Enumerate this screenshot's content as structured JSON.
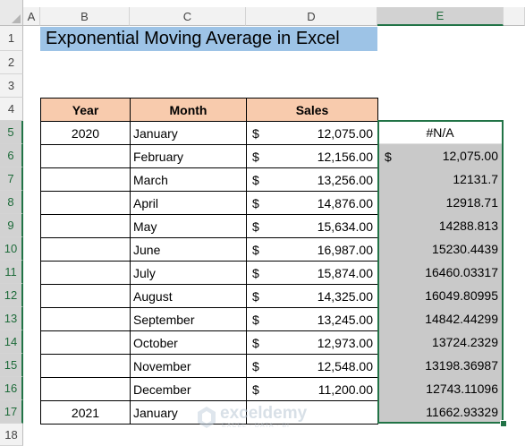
{
  "column_headers": [
    "A",
    "B",
    "C",
    "D",
    "E"
  ],
  "row_headers": [
    "1",
    "2",
    "3",
    "4",
    "5",
    "6",
    "7",
    "8",
    "9",
    "10",
    "11",
    "12",
    "13",
    "14",
    "15",
    "16",
    "17",
    "18"
  ],
  "title": "Exponential Moving Average in Excel",
  "table_headers": {
    "year": "Year",
    "month": "Month",
    "sales": "Sales"
  },
  "currency_symbol": "$",
  "rows": [
    {
      "year": "2020",
      "month": "January",
      "sales": "12,075.00",
      "ema": "#N/A"
    },
    {
      "year": "",
      "month": "February",
      "sales": "12,156.00",
      "ema": "12,075.00"
    },
    {
      "year": "",
      "month": "March",
      "sales": "13,256.00",
      "ema": "12131.7"
    },
    {
      "year": "",
      "month": "April",
      "sales": "14,876.00",
      "ema": "12918.71"
    },
    {
      "year": "",
      "month": "May",
      "sales": "15,634.00",
      "ema": "14288.813"
    },
    {
      "year": "",
      "month": "June",
      "sales": "16,987.00",
      "ema": "15230.4439"
    },
    {
      "year": "",
      "month": "July",
      "sales": "15,874.00",
      "ema": "16460.03317"
    },
    {
      "year": "",
      "month": "August",
      "sales": "14,325.00",
      "ema": "16049.80995"
    },
    {
      "year": "",
      "month": "September",
      "sales": "13,245.00",
      "ema": "14842.44299"
    },
    {
      "year": "",
      "month": "October",
      "sales": "12,973.00",
      "ema": "13724.2329"
    },
    {
      "year": "",
      "month": "November",
      "sales": "12,548.00",
      "ema": "13198.36987"
    },
    {
      "year": "",
      "month": "December",
      "sales": "11,200.00",
      "ema": "12743.11096"
    },
    {
      "year": "2021",
      "month": "January",
      "sales": "",
      "ema": "11662.93329"
    }
  ],
  "watermark": {
    "name": "exceldemy",
    "tagline": "EXCEL · DATA · BI"
  },
  "colors": {
    "title_bg": "#9dc3e6",
    "header_bg": "#f8cbad",
    "selection": "#217346",
    "ema_fill": "#c9c9c9"
  }
}
